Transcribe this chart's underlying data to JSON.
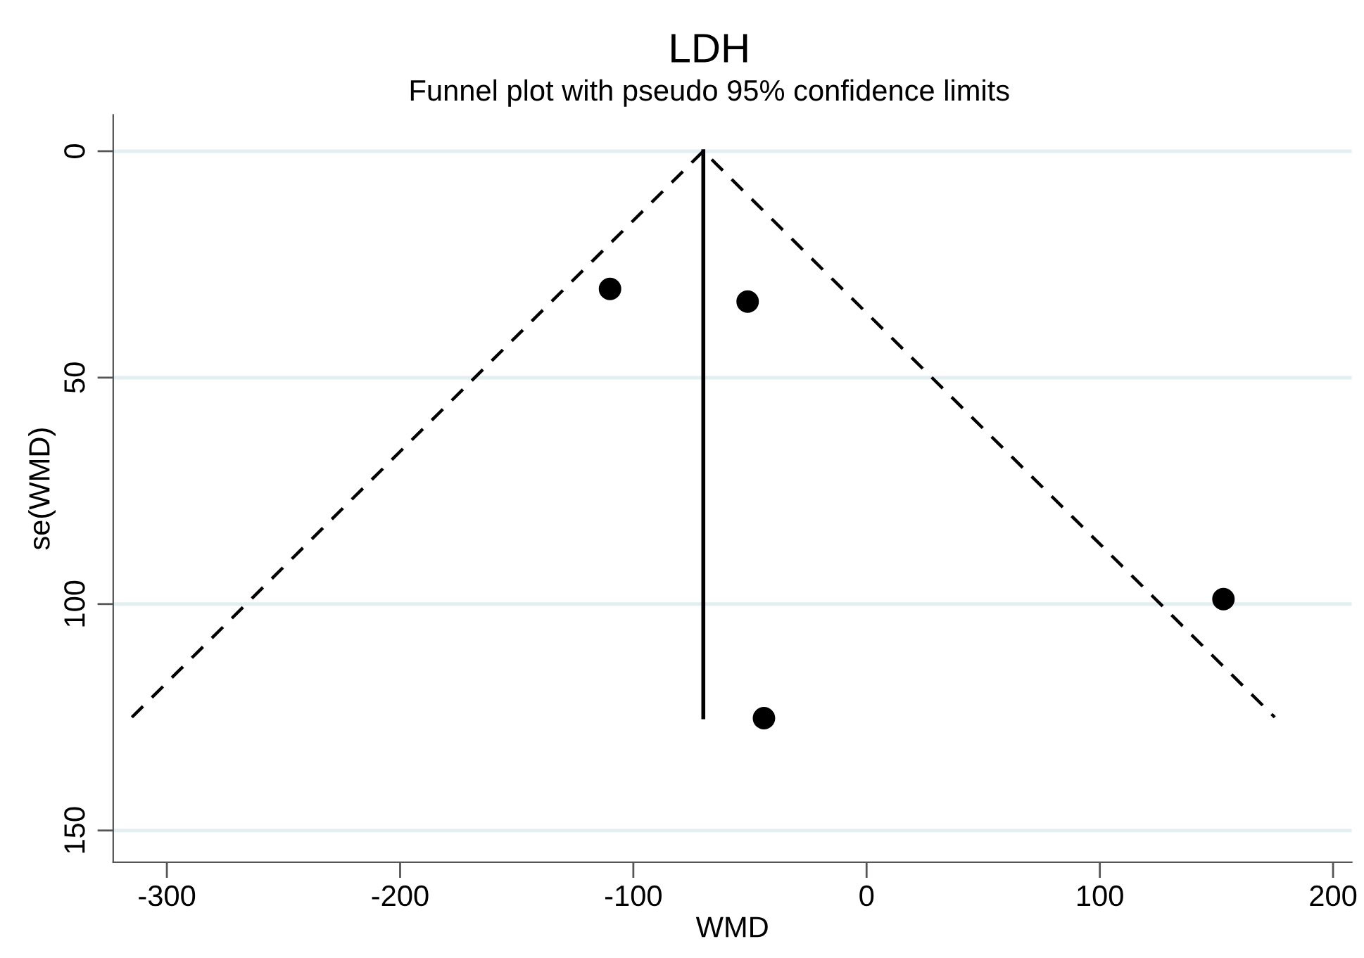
{
  "chart_data": {
    "type": "scatter",
    "title": "LDH",
    "subtitle": "Funnel plot with pseudo 95% confidence limits",
    "xlabel": "WMD",
    "ylabel": "se(WMD)",
    "xlim": [
      -323,
      208
    ],
    "xticks": [
      -300,
      -200,
      -100,
      0,
      100,
      200
    ],
    "ylim": [
      157,
      -8
    ],
    "yticks": [
      0,
      50,
      100,
      150
    ],
    "grid": "y",
    "series": [
      {
        "color": "#000000",
        "marker": "circle",
        "x": [
          -110,
          -51,
          -44,
          153
        ],
        "values": [
          30.4,
          33.2,
          125.2,
          98.9
        ]
      },
      {
        "type": "line",
        "color": "#000000",
        "line_style": "solid",
        "marker": "none",
        "x": [
          -70,
          -70
        ],
        "values": [
          0,
          125
        ]
      },
      {
        "type": "line",
        "color": "#000000",
        "line_style": "dashed",
        "marker": "none",
        "x": [
          -315,
          -70,
          175
        ],
        "values": [
          125,
          0,
          125
        ]
      }
    ]
  }
}
